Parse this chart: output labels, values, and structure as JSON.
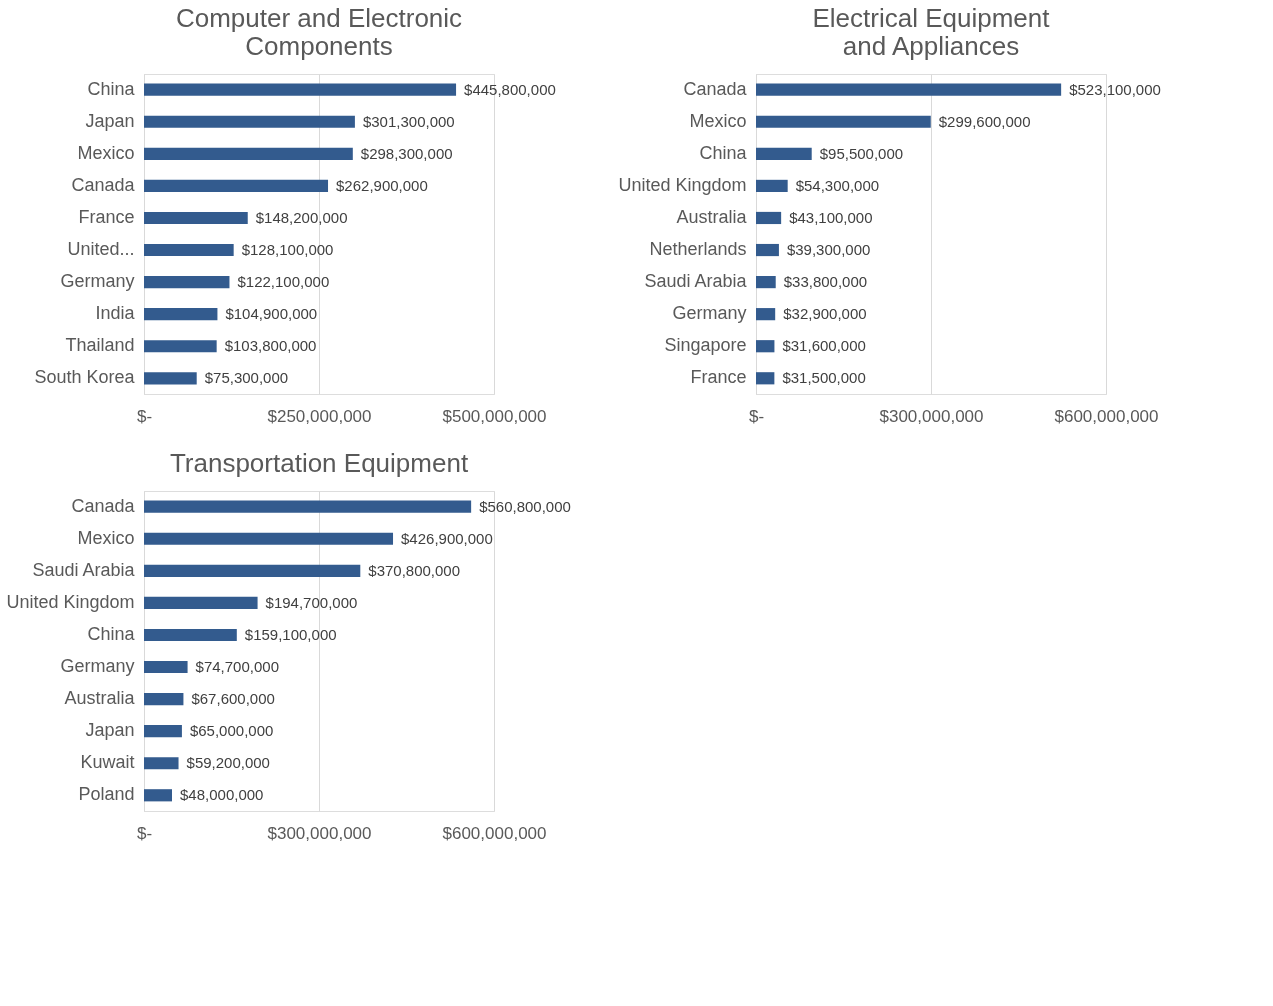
{
  "chart_data": [
    {
      "type": "bar",
      "orientation": "horizontal",
      "title": "Computer and Electronic\nComponents",
      "categories": [
        "China",
        "Japan",
        "Mexico",
        "Canada",
        "France",
        "United...",
        "Germany",
        "India",
        "Thailand",
        "South Korea"
      ],
      "values": [
        445800000,
        301300000,
        298300000,
        262900000,
        148200000,
        128100000,
        122100000,
        104900000,
        103800000,
        75300000
      ],
      "value_labels": [
        "$445,800,000",
        "$301,300,000",
        "$298,300,000",
        "$262,900,000",
        "$148,200,000",
        "$128,100,000",
        "$122,100,000",
        "$104,900,000",
        "$103,800,000",
        "$75,300,000"
      ],
      "color": "#335b8e",
      "xlim": [
        0,
        500000000
      ],
      "xticks": [
        {
          "value": 0,
          "label": "$-"
        },
        {
          "value": 250000000,
          "label": "$250,000,000"
        },
        {
          "value": 500000000,
          "label": "$500,000,000"
        }
      ],
      "grid": "x"
    },
    {
      "type": "bar",
      "orientation": "horizontal",
      "title": "Electrical Equipment\nand Appliances",
      "categories": [
        "Canada",
        "Mexico",
        "China",
        "United Kingdom",
        "Australia",
        "Netherlands",
        "Saudi Arabia",
        "Germany",
        "Singapore",
        "France"
      ],
      "values": [
        523100000,
        299600000,
        95500000,
        54300000,
        43100000,
        39300000,
        33800000,
        32900000,
        31600000,
        31500000
      ],
      "value_labels": [
        "$523,100,000",
        "$299,600,000",
        "$95,500,000",
        "$54,300,000",
        "$43,100,000",
        "$39,300,000",
        "$33,800,000",
        "$32,900,000",
        "$31,600,000",
        "$31,500,000"
      ],
      "color": "#335b8e",
      "xlim": [
        0,
        600000000
      ],
      "xticks": [
        {
          "value": 0,
          "label": "$-"
        },
        {
          "value": 300000000,
          "label": "$300,000,000"
        },
        {
          "value": 600000000,
          "label": "$600,000,000"
        }
      ],
      "grid": "x"
    },
    {
      "type": "bar",
      "orientation": "horizontal",
      "title": "Transportation Equipment",
      "categories": [
        "Canada",
        "Mexico",
        "Saudi Arabia",
        "United Kingdom",
        "China",
        "Germany",
        "Australia",
        "Japan",
        "Kuwait",
        "Poland"
      ],
      "values": [
        560800000,
        426900000,
        370800000,
        194700000,
        159100000,
        74700000,
        67600000,
        65000000,
        59200000,
        48000000
      ],
      "value_labels": [
        "$560,800,000",
        "$426,900,000",
        "$370,800,000",
        "$194,700,000",
        "$159,100,000",
        "$74,700,000",
        "$67,600,000",
        "$65,000,000",
        "$59,200,000",
        "$48,000,000"
      ],
      "color": "#335b8e",
      "xlim": [
        0,
        600000000
      ],
      "xticks": [
        {
          "value": 0,
          "label": "$-"
        },
        {
          "value": 300000000,
          "label": "$300,000,000"
        },
        {
          "value": 600000000,
          "label": "$600,000,000"
        }
      ],
      "grid": "x"
    }
  ]
}
